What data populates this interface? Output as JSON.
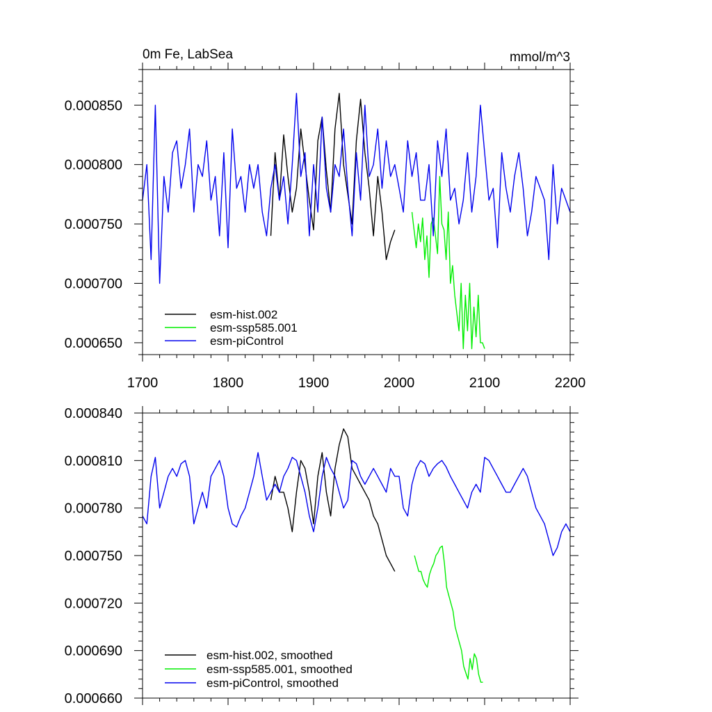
{
  "chart_data": [
    {
      "type": "line",
      "title_left": "0m Fe, LabSea",
      "title_right": "mmol/m^3",
      "xlabel": "",
      "ylabel": "",
      "xlim": [
        1700,
        2200
      ],
      "ylim": [
        0.00064,
        0.00088
      ],
      "x_ticks": [
        1700,
        1800,
        1900,
        2000,
        2100,
        2200
      ],
      "x_tick_labels": [
        "1700",
        "1800",
        "1900",
        "2000",
        "2100",
        "2200"
      ],
      "y_ticks": [
        0.00065,
        0.0007,
        0.00075,
        0.0008,
        0.00085
      ],
      "y_tick_labels": [
        "0.000650",
        "0.000700",
        "0.000750",
        "0.000800",
        "0.000850"
      ],
      "legend_position": "bottom-left",
      "series": [
        {
          "name": "esm-hist.002",
          "color": "#000000",
          "x_start": 1850,
          "x_step": 5,
          "values": [
            0.00074,
            0.00081,
            0.00077,
            0.000825,
            0.00079,
            0.00076,
            0.00078,
            0.00083,
            0.0008,
            0.00077,
            0.000745,
            0.00082,
            0.00084,
            0.000795,
            0.00076,
            0.00083,
            0.00086,
            0.0008,
            0.000775,
            0.00075,
            0.00082,
            0.000855,
            0.00081,
            0.00078,
            0.00074,
            0.00079,
            0.00076,
            0.00072,
            0.000735,
            0.000745
          ]
        },
        {
          "name": "esm-ssp585.001",
          "color": "#00ee00",
          "x_start": 2015,
          "x_step": 2.5,
          "values": [
            0.00076,
            0.000745,
            0.00073,
            0.00075,
            0.000735,
            0.000755,
            0.00072,
            0.00074,
            0.000705,
            0.00075,
            0.000755,
            0.00074,
            0.000725,
            0.00079,
            0.00075,
            0.000745,
            0.00072,
            0.00076,
            0.0007,
            0.000715,
            0.00069,
            0.000675,
            0.00066,
            0.0007,
            0.000645,
            0.00069,
            0.00066,
            0.0007,
            0.000645,
            0.00068,
            0.000655,
            0.00069,
            0.00065,
            0.00065,
            0.000645
          ]
        },
        {
          "name": "esm-piControl",
          "color": "#0000ee",
          "x_start": 1700,
          "x_step": 5,
          "values": [
            0.00077,
            0.0008,
            0.00072,
            0.00085,
            0.0007,
            0.00079,
            0.00076,
            0.00081,
            0.00082,
            0.00078,
            0.0008,
            0.00083,
            0.00076,
            0.0008,
            0.00079,
            0.00082,
            0.00077,
            0.00079,
            0.00074,
            0.00081,
            0.00073,
            0.00083,
            0.00078,
            0.00079,
            0.00076,
            0.0008,
            0.00078,
            0.0008,
            0.00076,
            0.00074,
            0.00078,
            0.0008,
            0.00077,
            0.00079,
            0.00075,
            0.0008,
            0.00086,
            0.00079,
            0.00081,
            0.00074,
            0.0008,
            0.00076,
            0.00084,
            0.00078,
            0.00076,
            0.0008,
            0.00079,
            0.00083,
            0.00078,
            0.00074,
            0.00081,
            0.00077,
            0.00085,
            0.00079,
            0.0008,
            0.00083,
            0.00078,
            0.00082,
            0.00079,
            0.0008,
            0.00078,
            0.00076,
            0.00082,
            0.00079,
            0.00081,
            0.00077,
            0.00077,
            0.0008,
            0.00074,
            0.00082,
            0.00079,
            0.00083,
            0.00077,
            0.00078,
            0.00075,
            0.00077,
            0.00081,
            0.00076,
            0.00079,
            0.00085,
            0.00081,
            0.00077,
            0.00078,
            0.00073,
            0.00081,
            0.00078,
            0.00076,
            0.00079,
            0.00081,
            0.00078,
            0.00074,
            0.00076,
            0.00079,
            0.00078,
            0.00077,
            0.00072,
            0.0008,
            0.00075,
            0.00078,
            0.00077,
            0.00076
          ]
        }
      ]
    },
    {
      "type": "line",
      "xlabel": "",
      "ylabel": "",
      "xlim": [
        1700,
        2200
      ],
      "ylim": [
        0.00066,
        0.00084
      ],
      "y_ticks": [
        0.00066,
        0.00069,
        0.00072,
        0.00075,
        0.00078,
        0.00081,
        0.00084
      ],
      "y_tick_labels": [
        "0.000660",
        "0.000690",
        "0.000720",
        "0.000750",
        "0.000780",
        "0.000810",
        "0.000840"
      ],
      "legend_position": "bottom-left",
      "series": [
        {
          "name": "esm-hist.002, smoothed",
          "color": "#000000",
          "x_start": 1850,
          "x_step": 5,
          "values": [
            0.000785,
            0.0008,
            0.00079,
            0.00079,
            0.00078,
            0.000765,
            0.00079,
            0.00081,
            0.000805,
            0.00079,
            0.00077,
            0.0008,
            0.000815,
            0.00079,
            0.000775,
            0.000805,
            0.00082,
            0.00083,
            0.000825,
            0.000805,
            0.0008,
            0.000795,
            0.00079,
            0.000785,
            0.000775,
            0.00077,
            0.00076,
            0.00075,
            0.000745,
            0.00074
          ]
        },
        {
          "name": "esm-ssp585.001, smoothed",
          "color": "#00ee00",
          "x_start": 2018,
          "x_step": 2.5,
          "values": [
            0.00075,
            0.000745,
            0.00074,
            0.00074,
            0.000735,
            0.000732,
            0.00073,
            0.000738,
            0.000742,
            0.000745,
            0.00075,
            0.000752,
            0.000755,
            0.000756,
            0.000745,
            0.00073,
            0.000725,
            0.00072,
            0.000715,
            0.000705,
            0.0007,
            0.000695,
            0.00069,
            0.00068,
            0.000676,
            0.000672,
            0.000685,
            0.000678,
            0.000688,
            0.000685,
            0.000675,
            0.00067,
            0.00067
          ]
        },
        {
          "name": "esm-piControl, smoothed",
          "color": "#0000ee",
          "x_start": 1700,
          "x_step": 5,
          "values": [
            0.000775,
            0.00077,
            0.0008,
            0.000812,
            0.00078,
            0.00079,
            0.0008,
            0.000805,
            0.0008,
            0.000808,
            0.00081,
            0.0008,
            0.00077,
            0.00078,
            0.00079,
            0.00078,
            0.0008,
            0.000805,
            0.00081,
            0.0008,
            0.00078,
            0.00077,
            0.000768,
            0.000775,
            0.00078,
            0.00079,
            0.0008,
            0.000815,
            0.0008,
            0.000785,
            0.00079,
            0.000795,
            0.00079,
            0.0008,
            0.000805,
            0.000812,
            0.00081,
            0.0008,
            0.00079,
            0.000775,
            0.000765,
            0.00078,
            0.0008,
            0.000812,
            0.000805,
            0.0008,
            0.00079,
            0.00078,
            0.000785,
            0.00081,
            0.000808,
            0.0008,
            0.000795,
            0.0008,
            0.000805,
            0.0008,
            0.000795,
            0.00079,
            0.000805,
            0.0008,
            0.0008,
            0.00078,
            0.000775,
            0.000795,
            0.000805,
            0.00081,
            0.000808,
            0.0008,
            0.000805,
            0.000808,
            0.00081,
            0.000806,
            0.0008,
            0.000795,
            0.00079,
            0.000785,
            0.00078,
            0.00079,
            0.000795,
            0.00079,
            0.000812,
            0.00081,
            0.000805,
            0.0008,
            0.000795,
            0.00079,
            0.00079,
            0.000795,
            0.0008,
            0.000805,
            0.0008,
            0.00079,
            0.00078,
            0.000775,
            0.00077,
            0.00076,
            0.00075,
            0.000755,
            0.000765,
            0.00077,
            0.000765
          ]
        }
      ]
    }
  ]
}
